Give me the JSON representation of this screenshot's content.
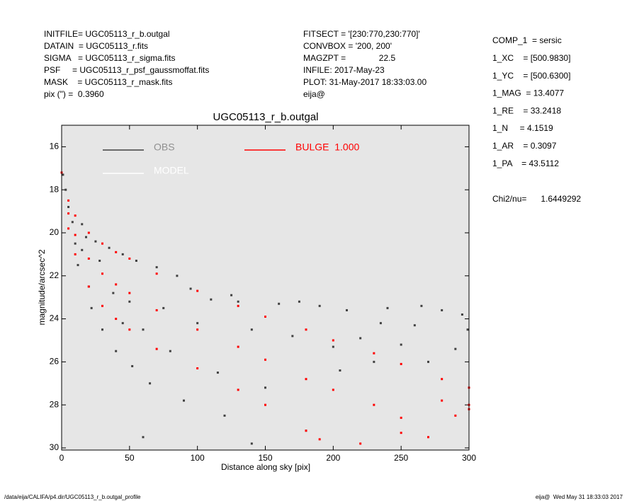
{
  "chart_data": {
    "type": "scatter",
    "title": "UGC05113_r_b.outgal",
    "x_label": "Distance along sky [pix]",
    "y_label": "magnitude/arcsec^2",
    "xlim": [
      0,
      300
    ],
    "xticks": [
      0,
      50,
      100,
      150,
      200,
      250,
      300
    ],
    "ylim": [
      15,
      30.1
    ],
    "yticks": [
      16,
      18,
      20,
      22,
      24,
      26,
      28,
      30
    ],
    "y_inverted": true,
    "background": "#e6e6e6",
    "legend_extra": {
      "name": "MODEL",
      "color": "#ffffff"
    },
    "series": [
      {
        "name": "OBS",
        "color": "#404040",
        "x": [
          1,
          3,
          5,
          8,
          10,
          12,
          15,
          18,
          20,
          22,
          25,
          28,
          30,
          35,
          38,
          40,
          45,
          50,
          52,
          55,
          60,
          65,
          70,
          75,
          80,
          85,
          90,
          95,
          100,
          110,
          115,
          120,
          130,
          140,
          150,
          160,
          170,
          180,
          190,
          200,
          210,
          220,
          230,
          240,
          250,
          260,
          270,
          280,
          290,
          299,
          60,
          140,
          15,
          45,
          125,
          175,
          235,
          265,
          295,
          205
        ],
        "values": [
          17.3,
          18,
          18.8,
          19.5,
          20.5,
          21.5,
          19.6,
          20.2,
          22.5,
          23.5,
          20.4,
          21.3,
          24.5,
          20.7,
          22.8,
          25.5,
          21,
          23.2,
          26.2,
          21.3,
          24.5,
          27,
          21.6,
          23.5,
          25.5,
          22,
          27.8,
          22.6,
          24.2,
          23.1,
          26.5,
          28.5,
          23.2,
          24.5,
          27.2,
          23.3,
          24.8,
          29.2,
          23.4,
          25.3,
          23.6,
          24.9,
          26,
          23.5,
          25.2,
          24.3,
          26,
          23.6,
          25.4,
          24.5,
          29.5,
          29.8,
          20.8,
          24.2,
          22.9,
          23.2,
          24.2,
          23.4,
          23.8,
          26.4
        ]
      },
      {
        "name": "BULGE  1.000",
        "color": "#ff0000",
        "x": [
          0,
          5,
          10,
          20,
          30,
          40,
          50,
          70,
          100,
          130,
          150,
          180,
          200,
          230,
          250,
          280,
          300,
          5,
          10,
          20,
          30,
          40,
          50,
          70,
          100,
          130,
          150,
          180,
          190,
          5,
          10,
          20,
          30,
          40,
          50,
          70,
          100,
          130,
          150,
          180,
          200,
          230,
          250,
          280,
          300,
          270,
          290,
          300,
          220,
          250
        ],
        "values": [
          17.2,
          18.5,
          19.2,
          20,
          20.5,
          20.9,
          21.2,
          21.9,
          22.7,
          23.4,
          23.9,
          24.5,
          25,
          25.6,
          26.1,
          26.8,
          27.2,
          19.8,
          21,
          22.5,
          23.4,
          24,
          24.5,
          25.4,
          26.3,
          27.3,
          28,
          29.2,
          29.6,
          19.1,
          20.1,
          21.2,
          21.9,
          22.4,
          22.8,
          23.6,
          24.5,
          25.3,
          25.9,
          26.8,
          27.3,
          28,
          28.6,
          27.8,
          28,
          29.5,
          28.5,
          28.2,
          29.8,
          29.3
        ]
      }
    ]
  },
  "header": {
    "left": [
      "INITFILE= UGC05113_r_b.outgal",
      "DATAIN  = UGC05113_r.fits",
      "SIGMA   = UGC05113_r_sigma.fits",
      "PSF     = UGC05113_r_psf_gaussmoffat.fits",
      "MASK    = UGC05113_r_mask.fits",
      "pix (\") =  0.3960"
    ],
    "middle": [
      "FITSECT = '[230:770,230:770]'",
      "CONVBOX = '200, 200'",
      "MAGZPT =              22.5",
      "INFILE: 2017-May-23",
      "PLOT: 31-May-2017 18:33:03.00",
      "eija@"
    ]
  },
  "parameters": [
    "COMP_1  = sersic",
    "1_XC    = [500.9830]",
    "1_YC    = [500.6300]",
    "1_MAG  = 13.4077",
    "1_RE    = 33.2418",
    "1_N     = 4.1519",
    "1_AR    = 0.3097",
    "1_PA    = 43.5112"
  ],
  "chi2": "Chi2/nu=      1.6449292",
  "footer": {
    "left": "/data/eija/CALIFA/p4.dir/UGC05113_r_b.outgal_profile",
    "right": "eija@  Wed May 31 18:33:03 2017"
  }
}
